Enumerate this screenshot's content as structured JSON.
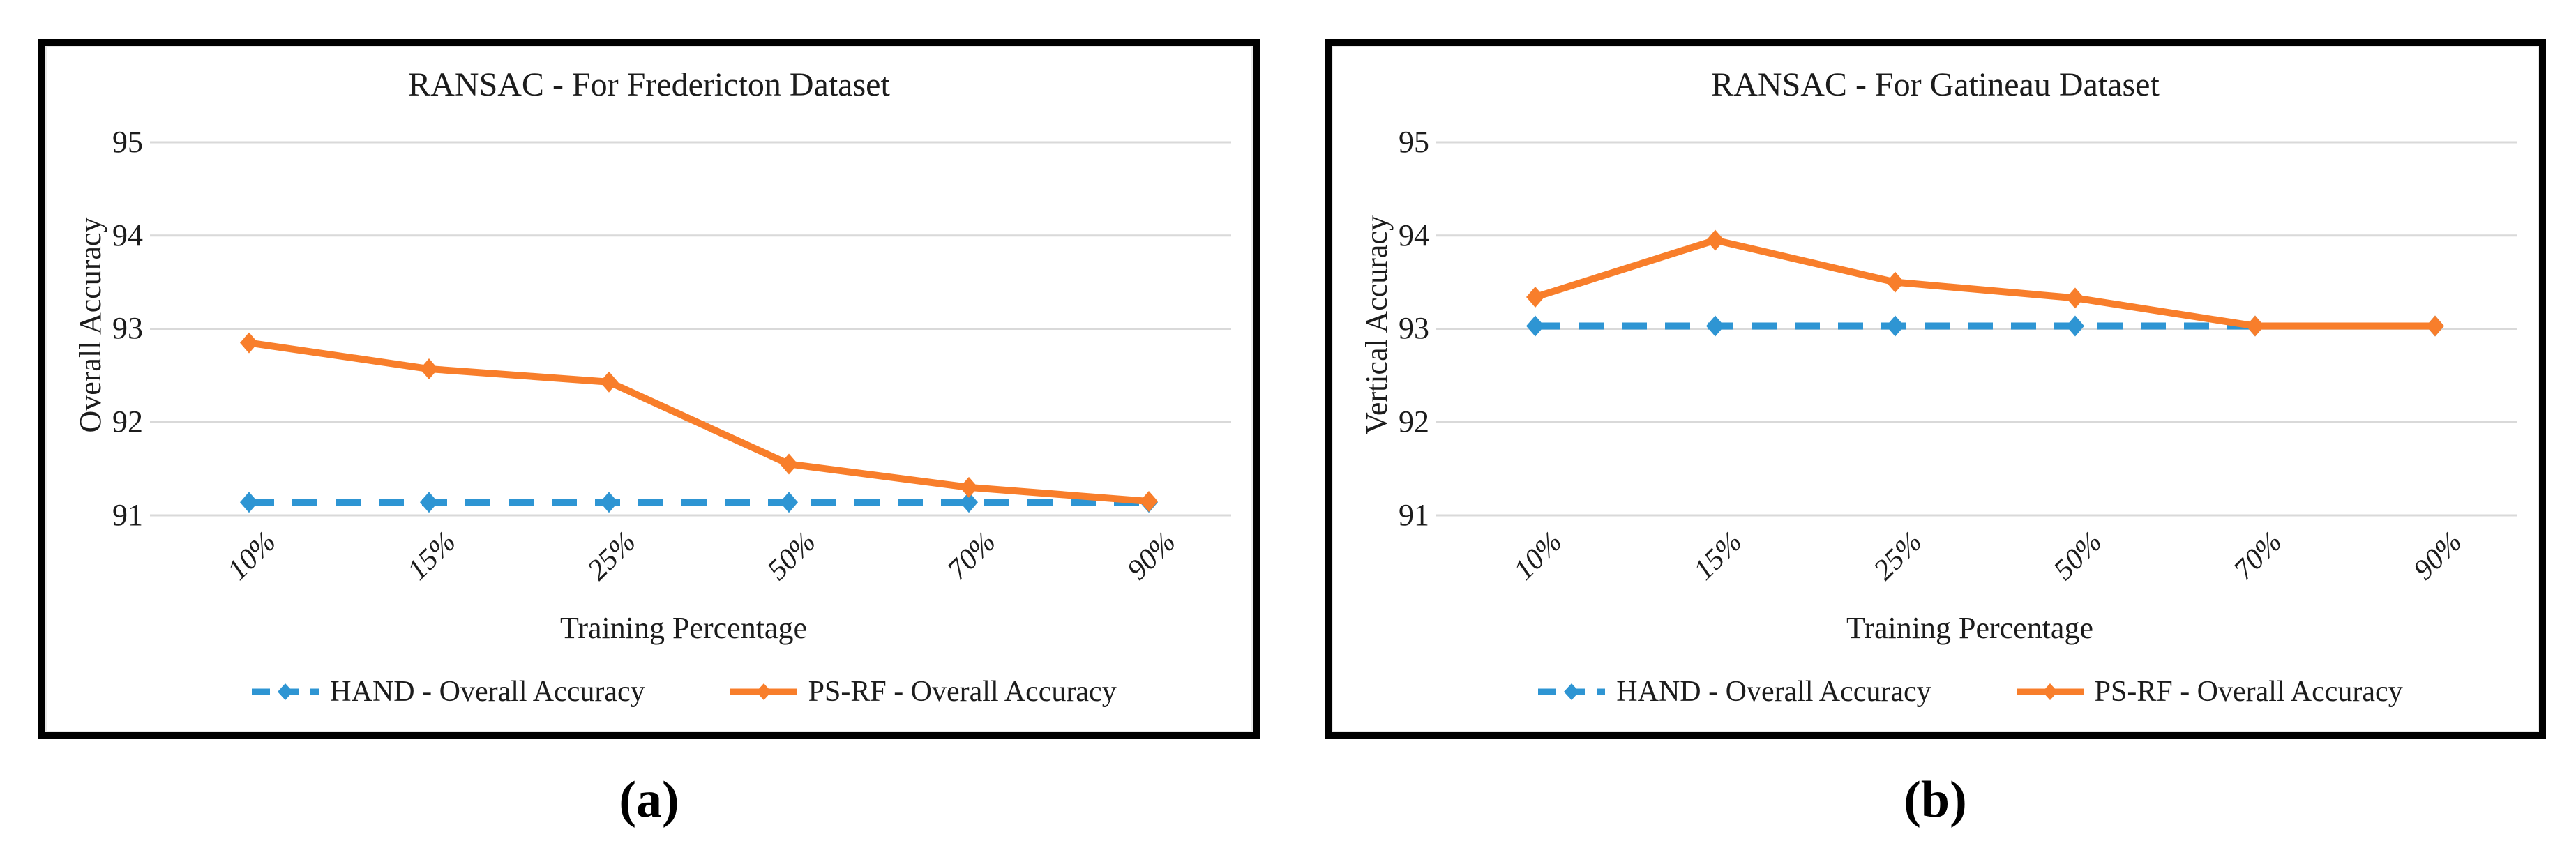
{
  "colors": {
    "hand": "#2E95D3",
    "psrf": "#F87E2B",
    "gridline": "#D9D9D9",
    "text": "#1C1C1C"
  },
  "chart_data": [
    {
      "type": "line",
      "title": "RANSAC - For Fredericton Dataset",
      "xlabel": "Training Percentage",
      "ylabel": "Overall Accuracy",
      "caption": "(a)",
      "categories": [
        "10%",
        "15%",
        "25%",
        "50%",
        "70%",
        "90%"
      ],
      "yticks": [
        95,
        94,
        93,
        92,
        91
      ],
      "ylim": [
        90.6,
        95.35
      ],
      "grid": true,
      "legend_position": "bottom",
      "series": [
        {
          "name": "HAND - Overall Accuracy",
          "style": "dashed",
          "color_key": "hand",
          "values": [
            91.14,
            91.14,
            91.14,
            91.14,
            91.14,
            91.14
          ]
        },
        {
          "name": "PS-RF - Overall Accuracy",
          "style": "solid",
          "color_key": "psrf",
          "values": [
            92.85,
            92.57,
            92.43,
            91.55,
            91.3,
            91.15
          ]
        }
      ]
    },
    {
      "type": "line",
      "title": "RANSAC - For Gatineau Dataset",
      "xlabel": "Training Percentage",
      "ylabel": "Vertical Accuracy",
      "caption": "(b)",
      "categories": [
        "10%",
        "15%",
        "25%",
        "50%",
        "70%",
        "90%"
      ],
      "yticks": [
        95,
        94,
        93,
        92,
        91
      ],
      "ylim": [
        90.6,
        95.35
      ],
      "grid": true,
      "legend_position": "bottom",
      "series": [
        {
          "name": "HAND - Overall Accuracy",
          "style": "dashed",
          "color_key": "hand",
          "values": [
            93.03,
            93.03,
            93.03,
            93.03,
            93.03,
            93.03
          ]
        },
        {
          "name": "PS-RF - Overall Accuracy",
          "style": "solid",
          "color_key": "psrf",
          "values": [
            93.34,
            93.95,
            93.5,
            93.33,
            93.03,
            93.03
          ]
        }
      ]
    }
  ]
}
